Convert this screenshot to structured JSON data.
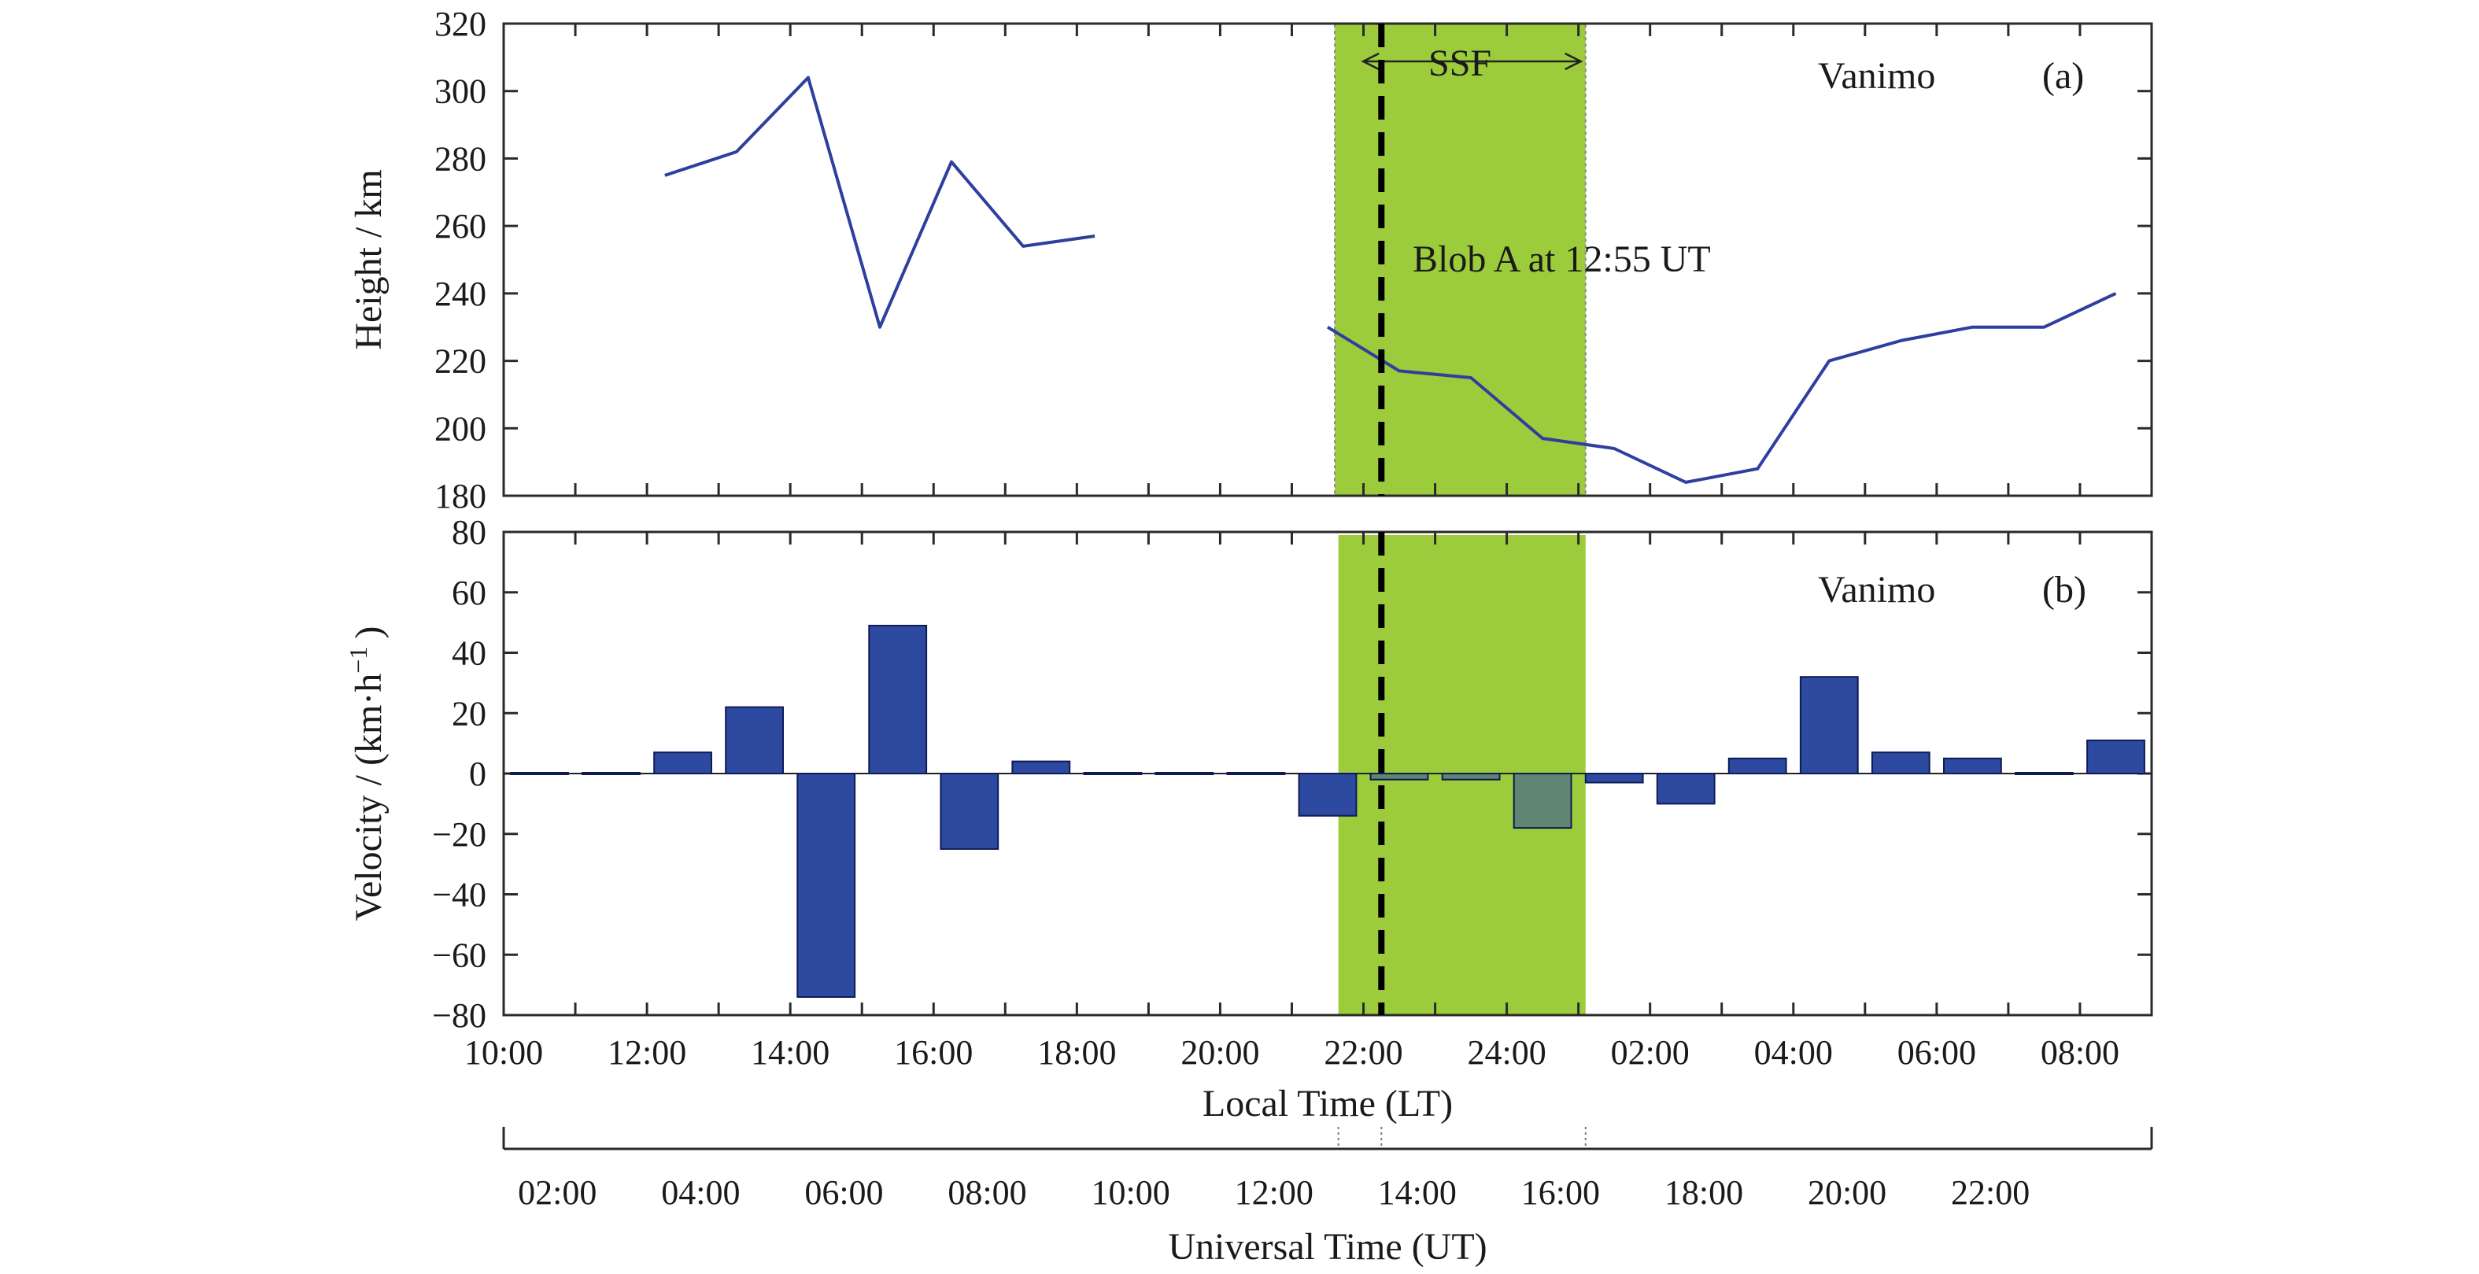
{
  "colors": {
    "line": "#2e3f9e",
    "bar": "#2e4aa0",
    "bar_stroke": "#0d1a55",
    "ssf_band": "#9ccc3c",
    "axis": "#2a2a2a"
  },
  "chart_data": [
    {
      "type": "line",
      "panel_label": "(a)",
      "station_label": "Vanimo",
      "ylabel": "Height / km",
      "ylim": [
        180,
        320
      ],
      "yticks": [
        "320",
        "300",
        "280",
        "260",
        "240",
        "220",
        "200",
        "180"
      ],
      "xlim": [
        0,
        23
      ],
      "x_unit": "hours after 10:00 LT",
      "segments": [
        {
          "x": [
            2.25,
            3.25,
            4.25,
            5.25,
            6.25,
            7.25,
            8.25
          ],
          "y": [
            275,
            282,
            304,
            230,
            279,
            254,
            257
          ]
        },
        {
          "x": [
            11.5,
            12.5,
            13.5,
            14.5,
            15.5,
            16.5,
            17.5,
            18.5,
            19.5,
            20.5,
            21.5,
            22.5
          ],
          "y": [
            230,
            217,
            215,
            197,
            194,
            184,
            188,
            220,
            226,
            230,
            230,
            240
          ]
        }
      ],
      "annotations": {
        "ssf": "SSF",
        "blob": "Blob A at 12:55 UT"
      },
      "ssf_band_x": [
        11.6,
        15.1
      ],
      "blob_x": 12.25
    },
    {
      "type": "bar",
      "panel_label": "(b)",
      "station_label": "Vanimo",
      "ylabel": "Velocity / (km·h",
      "ylabel_superscript": "−1",
      "ylabel_close": ")",
      "ylim": [
        -80,
        80
      ],
      "yticks": [
        "80",
        "60",
        "40",
        "20",
        "0",
        "−20",
        "−40",
        "−60",
        "−80"
      ],
      "xlim": [
        0,
        23
      ],
      "x": [
        0.5,
        1.5,
        2.5,
        3.5,
        4.5,
        5.5,
        6.5,
        7.5,
        8.5,
        9.5,
        10.5,
        11.5,
        12.5,
        13.5,
        14.5,
        15.5,
        16.5,
        17.5,
        18.5,
        19.5,
        20.5,
        21.5,
        22.5
      ],
      "values": [
        0,
        0,
        7,
        22,
        -74,
        49,
        -25,
        4,
        0,
        0,
        0,
        -14,
        -2,
        -2,
        -18,
        -3,
        -10,
        5,
        32,
        7,
        5,
        0,
        11
      ],
      "ssf_band_x": [
        11.65,
        15.1
      ],
      "blob_x": 12.25
    }
  ],
  "x_axes": {
    "local": {
      "label": "Local Time (LT)",
      "ticks": [
        "10:00",
        "12:00",
        "14:00",
        "16:00",
        "18:00",
        "20:00",
        "22:00",
        "24:00",
        "02:00",
        "04:00",
        "06:00",
        "08:00"
      ]
    },
    "universal": {
      "label": "Universal Time (UT)",
      "ticks": [
        "02:00",
        "04:00",
        "06:00",
        "08:00",
        "10:00",
        "12:00",
        "14:00",
        "16:00",
        "18:00",
        "20:00",
        "22:00"
      ]
    }
  }
}
